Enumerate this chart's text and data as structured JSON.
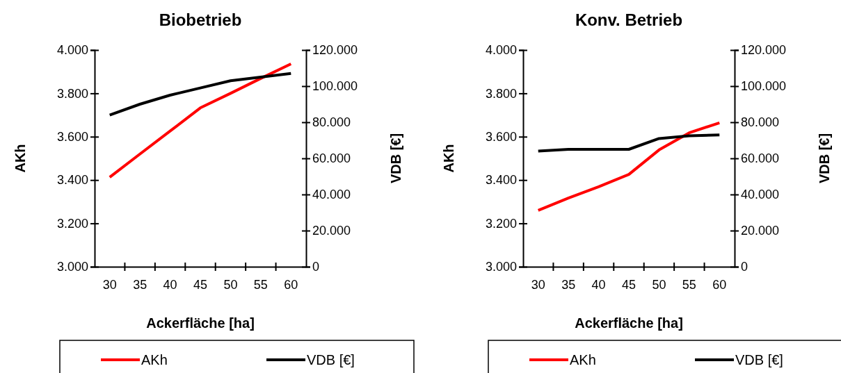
{
  "chart_data": [
    {
      "type": "line",
      "title": "Biobetrieb",
      "xlabel": "Ackerfläche [ha]",
      "ylabel": "AKh",
      "y2label": "VDB [€]",
      "categories": [
        "30",
        "35",
        "40",
        "45",
        "50",
        "55",
        "60"
      ],
      "series": [
        {
          "name": "AKh",
          "color": "#ff0000",
          "values": [
            3413,
            3520,
            3626,
            3733,
            3800,
            3869,
            3936
          ]
        },
        {
          "name": "VDB [€]",
          "color": "#000000",
          "axis": "y2",
          "values": [
            84000,
            90000,
            95000,
            99000,
            103000,
            105000,
            107000
          ]
        }
      ],
      "ylim": [
        3000,
        4000
      ],
      "yticks": [
        {
          "value": 3000,
          "label": "3.000"
        },
        {
          "value": 3200,
          "label": "3.200"
        },
        {
          "value": 3400,
          "label": "3.400"
        },
        {
          "value": 3600,
          "label": "3.600"
        },
        {
          "value": 3800,
          "label": "3.800"
        },
        {
          "value": 4000,
          "label": "4.000"
        }
      ],
      "y2lim": [
        0,
        120000
      ],
      "y2ticks": [
        0,
        {
          "value": 20000,
          "label": "20.000"
        },
        {
          "value": 40000,
          "label": "40.000"
        },
        {
          "value": 60000,
          "label": "60.000"
        },
        {
          "value": 80000,
          "label": "80.000"
        },
        {
          "value": 100000,
          "label": "100.000"
        },
        {
          "value": 120000,
          "label": "120.000"
        }
      ],
      "legend": "bottom",
      "marker": "none",
      "line_style": "solid"
    },
    {
      "type": "line",
      "title": "Konv. Betrieb",
      "xlabel": "Ackerfläche [ha]",
      "ylabel": "AKh",
      "y2label": "VDB [€]",
      "categories": [
        "30",
        "35",
        "40",
        "45",
        "50",
        "55",
        "60"
      ],
      "series": [
        {
          "name": "AKh",
          "color": "#ff0000",
          "values": [
            3260,
            3317,
            3369,
            3426,
            3539,
            3618,
            3664
          ]
        },
        {
          "name": "VDB [€]",
          "color": "#000000",
          "axis": "y2",
          "values": [
            64000,
            65000,
            65000,
            65000,
            71000,
            72500,
            73000
          ]
        }
      ],
      "ylim": [
        3000,
        4000
      ],
      "yticks": [
        {
          "value": 3000,
          "label": "3.000"
        },
        {
          "value": 3200,
          "label": "3.200"
        },
        {
          "value": 3400,
          "label": "3.400"
        },
        {
          "value": 3600,
          "label": "3.600"
        },
        {
          "value": 3800,
          "label": "3.800"
        },
        {
          "value": 4000,
          "label": "4.000"
        }
      ],
      "y2lim": [
        0,
        120000
      ],
      "y2ticks": [
        0,
        {
          "value": 20000,
          "label": "20.000"
        },
        {
          "value": 40000,
          "label": "40.000"
        },
        {
          "value": 60000,
          "label": "60.000"
        },
        {
          "value": 80000,
          "label": "80.000"
        },
        {
          "value": 100000,
          "label": "100.000"
        },
        {
          "value": 120000,
          "label": "120.000"
        }
      ],
      "legend": "bottom",
      "marker": "none",
      "line_style": "solid"
    }
  ]
}
